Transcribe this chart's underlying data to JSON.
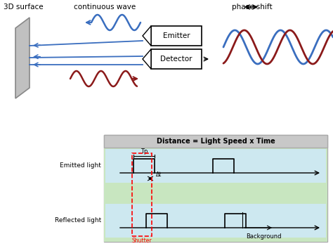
{
  "title_3d": "3D surface",
  "title_cw": "continuous wave",
  "title_ps": "phase shift",
  "emitter_text": "Emitter",
  "detector_text": "Detector",
  "distance_formula": "Distance = Light Speed x Time",
  "emitted_light_label": "Emitted light",
  "reflected_light_label": "Reflected light",
  "tp_label": "Tp",
  "dt_label": "Δt",
  "shutter_label": "Shutter",
  "background_label": "Background",
  "blue_color": "#3a6ebf",
  "red_color": "#8b1a1a",
  "black_color": "#111111",
  "green_bg": "#c8e6c0",
  "light_blue_bg": "#cde8f0",
  "gray_title": "#c8c8c8",
  "panel_face": "#c0c0c0",
  "panel_edge": "#888888"
}
